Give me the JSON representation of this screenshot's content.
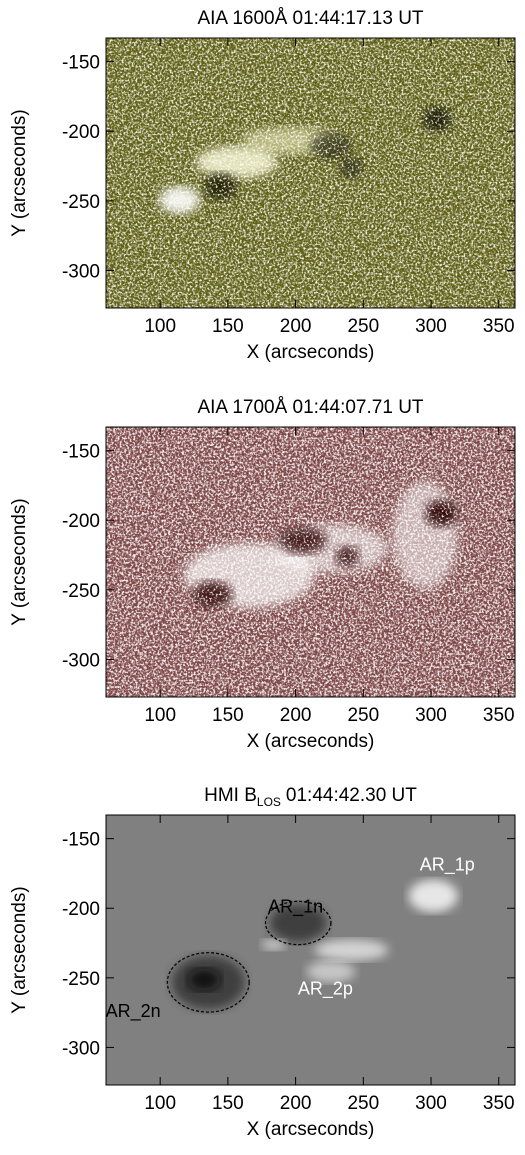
{
  "chart_data": [
    {
      "type": "image",
      "title": "AIA 1600Å 01:44:17.13 UT",
      "xlabel": "X (arcseconds)",
      "ylabel": "Y (arcseconds)",
      "xlim": [
        60,
        362
      ],
      "ylim": [
        -327,
        -133
      ],
      "xticks": [
        100,
        150,
        200,
        250,
        300,
        350
      ],
      "yticks": [
        -150,
        -200,
        -250,
        -300
      ],
      "color": "#5e5e12"
    },
    {
      "type": "image",
      "title": "AIA 1700Å 01:44:07.71 UT",
      "xlabel": "X (arcseconds)",
      "ylabel": "Y (arcseconds)",
      "xlim": [
        60,
        362
      ],
      "ylim": [
        -327,
        -133
      ],
      "xticks": [
        100,
        150,
        200,
        250,
        300,
        350
      ],
      "yticks": [
        -150,
        -200,
        -250,
        -300
      ],
      "color": "#7e4545"
    },
    {
      "type": "image",
      "title": "HMI B",
      "title_subscript": "LOS",
      "title_suffix": "01:44:42.30 UT",
      "xlabel": "X (arcseconds)",
      "ylabel": "Y (arcseconds)",
      "xlim": [
        60,
        362
      ],
      "ylim": [
        -327,
        -133
      ],
      "xticks": [
        100,
        150,
        200,
        250,
        300,
        350
      ],
      "yticks": [
        -150,
        -200,
        -250,
        -300
      ],
      "color": "#808080",
      "annotations": [
        {
          "text": "AR_1p",
          "x": 312,
          "y": -173,
          "color": "#ffffff"
        },
        {
          "text": "AR_1n",
          "x": 200,
          "y": -203,
          "color": "#000000"
        },
        {
          "text": "AR_2p",
          "x": 222,
          "y": -262,
          "color": "#ffffff"
        },
        {
          "text": "AR_2n",
          "x": 80,
          "y": -278,
          "color": "#000000"
        }
      ]
    }
  ]
}
